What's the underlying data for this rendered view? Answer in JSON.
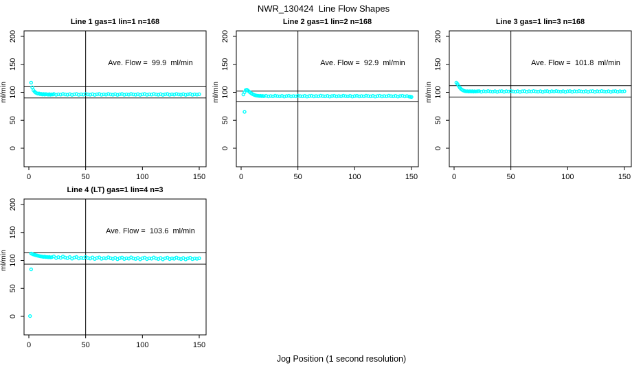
{
  "figure": {
    "title": "NWR_130424  Line Flow Shapes",
    "xlabel": "Jog Position (1 second resolution)",
    "ylabel": "ml/min",
    "background_color": "#FFFFFF",
    "axis_color": "#000000",
    "point_color": "#00FFFF"
  },
  "chart_data": [
    {
      "type": "scatter",
      "title": "Line 1 gas=1 lin=1 n=168",
      "annotation": "Ave. Flow =  99.9  ml/min",
      "ave_flow_ml_min": 99.9,
      "n": 168,
      "xlim": [
        0,
        150
      ],
      "ylim": [
        0,
        200
      ],
      "xticks": [
        0,
        50,
        100,
        150
      ],
      "yticks": [
        0,
        50,
        100,
        150,
        200
      ],
      "vline_x": 50,
      "ref_lines_y": [
        109.9,
        89.9
      ],
      "points": [
        [
          2,
          117.3
        ],
        [
          3,
          108.8
        ],
        [
          4,
          103.8
        ],
        [
          5,
          101.2
        ],
        [
          6,
          99.4
        ],
        [
          7,
          98.3
        ],
        [
          8,
          97.5
        ],
        [
          9,
          97.9
        ],
        [
          10,
          96.7
        ],
        [
          11,
          97.2
        ],
        [
          12,
          96.1
        ],
        [
          13,
          97.0
        ],
        [
          14,
          95.9
        ],
        [
          15,
          96.8
        ],
        [
          16,
          96.3
        ],
        [
          17,
          95.8
        ],
        [
          18,
          96.7
        ],
        [
          19,
          95.6
        ],
        [
          20,
          96.5
        ],
        [
          21,
          96.1
        ],
        [
          22,
          96.9
        ],
        [
          24,
          95.6
        ],
        [
          26,
          96.5
        ],
        [
          28,
          95.9
        ],
        [
          30,
          97.1
        ],
        [
          32,
          96.2
        ],
        [
          34,
          95.7
        ],
        [
          36,
          96.7
        ],
        [
          38,
          95.4
        ],
        [
          40,
          96.4
        ],
        [
          42,
          96.9
        ],
        [
          44,
          95.6
        ],
        [
          46,
          96.5
        ],
        [
          48,
          95.9
        ],
        [
          50,
          97.1
        ],
        [
          52,
          96.2
        ],
        [
          54,
          95.7
        ],
        [
          56,
          96.7
        ],
        [
          58,
          95.4
        ],
        [
          60,
          96.4
        ],
        [
          62,
          96.9
        ],
        [
          64,
          95.6
        ],
        [
          66,
          96.5
        ],
        [
          68,
          95.9
        ],
        [
          70,
          97.1
        ],
        [
          72,
          96.2
        ],
        [
          74,
          95.7
        ],
        [
          76,
          96.7
        ],
        [
          78,
          95.4
        ],
        [
          80,
          96.4
        ],
        [
          82,
          96.9
        ],
        [
          84,
          95.6
        ],
        [
          86,
          96.5
        ],
        [
          88,
          95.9
        ],
        [
          90,
          97.1
        ],
        [
          92,
          96.2
        ],
        [
          94,
          95.7
        ],
        [
          96,
          96.7
        ],
        [
          98,
          95.4
        ],
        [
          100,
          96.4
        ],
        [
          102,
          96.9
        ],
        [
          104,
          95.6
        ],
        [
          106,
          96.5
        ],
        [
          108,
          95.9
        ],
        [
          110,
          97.1
        ],
        [
          112,
          96.2
        ],
        [
          114,
          95.7
        ],
        [
          116,
          96.7
        ],
        [
          118,
          95.4
        ],
        [
          120,
          96.4
        ],
        [
          122,
          96.9
        ],
        [
          124,
          95.6
        ],
        [
          126,
          96.5
        ],
        [
          128,
          95.9
        ],
        [
          130,
          97.1
        ],
        [
          132,
          96.2
        ],
        [
          134,
          95.7
        ],
        [
          136,
          96.7
        ],
        [
          138,
          95.4
        ],
        [
          140,
          96.4
        ],
        [
          142,
          96.9
        ],
        [
          144,
          95.6
        ],
        [
          146,
          96.5
        ],
        [
          148,
          95.9
        ],
        [
          150,
          96.6
        ]
      ]
    },
    {
      "type": "scatter",
      "title": "Line 2 gas=1 lin=2 n=168",
      "annotation": "Ave. Flow =  92.9  ml/min",
      "ave_flow_ml_min": 92.9,
      "n": 168,
      "xlim": [
        0,
        150
      ],
      "ylim": [
        0,
        200
      ],
      "xticks": [
        0,
        50,
        100,
        150
      ],
      "yticks": [
        0,
        50,
        100,
        150,
        200
      ],
      "vline_x": 50,
      "ref_lines_y": [
        102.2,
        83.6
      ],
      "points": [
        [
          2,
          96.2
        ],
        [
          3,
          65.0
        ],
        [
          3,
          100.3
        ],
        [
          4,
          103.9
        ],
        [
          5,
          104.6
        ],
        [
          6,
          103.2
        ],
        [
          7,
          101.4
        ],
        [
          8,
          99.6
        ],
        [
          9,
          98.1
        ],
        [
          10,
          96.8
        ],
        [
          11,
          95.8
        ],
        [
          12,
          95.0
        ],
        [
          13,
          94.4
        ],
        [
          14,
          94.0
        ],
        [
          15,
          93.7
        ],
        [
          16,
          93.4
        ],
        [
          17,
          93.8
        ],
        [
          18,
          93.1
        ],
        [
          19,
          93.5
        ],
        [
          20,
          93.0
        ],
        [
          22,
          93.7
        ],
        [
          24,
          92.6
        ],
        [
          26,
          93.4
        ],
        [
          28,
          92.8
        ],
        [
          30,
          93.9
        ],
        [
          32,
          93.1
        ],
        [
          34,
          92.7
        ],
        [
          36,
          93.6
        ],
        [
          38,
          92.4
        ],
        [
          40,
          93.3
        ],
        [
          42,
          93.7
        ],
        [
          44,
          92.6
        ],
        [
          46,
          93.4
        ],
        [
          48,
          92.8
        ],
        [
          50,
          93.9
        ],
        [
          52,
          93.1
        ],
        [
          54,
          92.7
        ],
        [
          56,
          93.6
        ],
        [
          58,
          92.4
        ],
        [
          60,
          93.3
        ],
        [
          62,
          93.7
        ],
        [
          64,
          92.6
        ],
        [
          66,
          93.4
        ],
        [
          68,
          92.8
        ],
        [
          70,
          93.9
        ],
        [
          72,
          93.1
        ],
        [
          74,
          92.7
        ],
        [
          76,
          93.6
        ],
        [
          78,
          92.4
        ],
        [
          80,
          93.3
        ],
        [
          82,
          93.7
        ],
        [
          84,
          92.6
        ],
        [
          86,
          93.4
        ],
        [
          88,
          92.8
        ],
        [
          90,
          93.9
        ],
        [
          92,
          93.1
        ],
        [
          94,
          92.7
        ],
        [
          96,
          93.6
        ],
        [
          98,
          92.4
        ],
        [
          100,
          93.3
        ],
        [
          102,
          93.7
        ],
        [
          104,
          92.6
        ],
        [
          106,
          93.4
        ],
        [
          108,
          92.8
        ],
        [
          110,
          93.9
        ],
        [
          112,
          93.1
        ],
        [
          114,
          92.7
        ],
        [
          116,
          93.6
        ],
        [
          118,
          92.4
        ],
        [
          120,
          93.3
        ],
        [
          122,
          93.7
        ],
        [
          124,
          92.6
        ],
        [
          126,
          93.4
        ],
        [
          128,
          92.8
        ],
        [
          130,
          93.9
        ],
        [
          132,
          93.1
        ],
        [
          134,
          92.7
        ],
        [
          136,
          93.6
        ],
        [
          138,
          92.4
        ],
        [
          140,
          93.3
        ],
        [
          142,
          93.7
        ],
        [
          144,
          92.6
        ],
        [
          146,
          93.4
        ],
        [
          148,
          92.3
        ],
        [
          149,
          92.0
        ],
        [
          150,
          91.6
        ]
      ]
    },
    {
      "type": "scatter",
      "title": "Line 3 gas=1 lin=3 n=168",
      "annotation": "Ave. Flow =  101.8  ml/min",
      "ave_flow_ml_min": 101.8,
      "n": 168,
      "xlim": [
        0,
        150
      ],
      "ylim": [
        0,
        200
      ],
      "xticks": [
        0,
        50,
        100,
        150
      ],
      "yticks": [
        0,
        50,
        100,
        150,
        200
      ],
      "vline_x": 50,
      "ref_lines_y": [
        112.0,
        91.6
      ],
      "points": [
        [
          2,
          117.2
        ],
        [
          3,
          114.9
        ],
        [
          4,
          111.4
        ],
        [
          5,
          108.4
        ],
        [
          6,
          106.1
        ],
        [
          7,
          104.5
        ],
        [
          8,
          103.3
        ],
        [
          9,
          102.5
        ],
        [
          10,
          102.0
        ],
        [
          11,
          101.7
        ],
        [
          12,
          101.9
        ],
        [
          13,
          101.4
        ],
        [
          14,
          101.8
        ],
        [
          15,
          101.3
        ],
        [
          16,
          101.9
        ],
        [
          17,
          101.2
        ],
        [
          18,
          101.7
        ],
        [
          19,
          101.4
        ],
        [
          20,
          101.6
        ],
        [
          21,
          101.8
        ],
        [
          22,
          102.1
        ],
        [
          24,
          101.0
        ],
        [
          26,
          101.8
        ],
        [
          28,
          101.3
        ],
        [
          30,
          102.2
        ],
        [
          32,
          101.5
        ],
        [
          34,
          101.1
        ],
        [
          36,
          101.9
        ],
        [
          38,
          100.9
        ],
        [
          40,
          101.7
        ],
        [
          42,
          102.1
        ],
        [
          44,
          101.0
        ],
        [
          46,
          101.8
        ],
        [
          48,
          101.3
        ],
        [
          50,
          102.2
        ],
        [
          52,
          101.5
        ],
        [
          54,
          101.1
        ],
        [
          56,
          101.9
        ],
        [
          58,
          100.9
        ],
        [
          60,
          101.7
        ],
        [
          62,
          102.1
        ],
        [
          64,
          101.0
        ],
        [
          66,
          101.8
        ],
        [
          68,
          101.3
        ],
        [
          70,
          102.2
        ],
        [
          72,
          101.5
        ],
        [
          74,
          101.1
        ],
        [
          76,
          101.9
        ],
        [
          78,
          100.9
        ],
        [
          80,
          101.7
        ],
        [
          82,
          102.1
        ],
        [
          84,
          101.0
        ],
        [
          86,
          101.8
        ],
        [
          88,
          101.3
        ],
        [
          90,
          102.2
        ],
        [
          92,
          101.5
        ],
        [
          94,
          101.1
        ],
        [
          96,
          101.9
        ],
        [
          98,
          100.9
        ],
        [
          100,
          101.7
        ],
        [
          102,
          102.1
        ],
        [
          104,
          101.0
        ],
        [
          106,
          101.8
        ],
        [
          108,
          101.3
        ],
        [
          110,
          102.2
        ],
        [
          112,
          101.5
        ],
        [
          114,
          101.1
        ],
        [
          116,
          101.9
        ],
        [
          118,
          100.9
        ],
        [
          120,
          101.7
        ],
        [
          122,
          102.1
        ],
        [
          124,
          101.0
        ],
        [
          126,
          101.8
        ],
        [
          128,
          101.3
        ],
        [
          130,
          102.2
        ],
        [
          132,
          101.5
        ],
        [
          134,
          101.1
        ],
        [
          136,
          101.9
        ],
        [
          138,
          100.9
        ],
        [
          140,
          101.7
        ],
        [
          142,
          102.1
        ],
        [
          144,
          101.0
        ],
        [
          146,
          101.8
        ],
        [
          148,
          101.3
        ],
        [
          150,
          101.9
        ]
      ]
    },
    {
      "type": "scatter",
      "title": "Line 4 (LT) gas=1 lin=4 n=3",
      "annotation": "Ave. Flow =  103.6  ml/min",
      "ave_flow_ml_min": 103.6,
      "n": 3,
      "xlim": [
        0,
        150
      ],
      "ylim": [
        0,
        200
      ],
      "xticks": [
        0,
        50,
        100,
        150
      ],
      "yticks": [
        0,
        50,
        100,
        150,
        200
      ],
      "vline_x": 50,
      "ref_lines_y": [
        114.0,
        93.2
      ],
      "points": [
        [
          1,
          0.5
        ],
        [
          2,
          84.0
        ],
        [
          2,
          112.4
        ],
        [
          3,
          111.5
        ],
        [
          4,
          110.7
        ],
        [
          5,
          110.1
        ],
        [
          6,
          109.4
        ],
        [
          7,
          108.9
        ],
        [
          8,
          108.3
        ],
        [
          9,
          107.9
        ],
        [
          10,
          107.4
        ],
        [
          11,
          107.1
        ],
        [
          12,
          106.7
        ],
        [
          13,
          106.4
        ],
        [
          14,
          106.8
        ],
        [
          15,
          106.0
        ],
        [
          16,
          106.3
        ],
        [
          17,
          105.7
        ],
        [
          18,
          106.1
        ],
        [
          19,
          105.4
        ],
        [
          20,
          105.8
        ],
        [
          22,
          107.1
        ],
        [
          24,
          104.3
        ],
        [
          26,
          105.9
        ],
        [
          28,
          104.7
        ],
        [
          30,
          107.0
        ],
        [
          32,
          105.2
        ],
        [
          34,
          104.1
        ],
        [
          36,
          106.0
        ],
        [
          38,
          103.3
        ],
        [
          40,
          105.2
        ],
        [
          42,
          106.1
        ],
        [
          44,
          103.5
        ],
        [
          46,
          104.8
        ],
        [
          48,
          103.9
        ],
        [
          50,
          106.2
        ],
        [
          52,
          104.4
        ],
        [
          54,
          103.4
        ],
        [
          56,
          105.3
        ],
        [
          58,
          102.7
        ],
        [
          60,
          104.4
        ],
        [
          62,
          105.4
        ],
        [
          64,
          102.9
        ],
        [
          66,
          104.2
        ],
        [
          68,
          103.5
        ],
        [
          70,
          105.7
        ],
        [
          72,
          103.9
        ],
        [
          74,
          102.9
        ],
        [
          76,
          104.7
        ],
        [
          78,
          102.2
        ],
        [
          80,
          104.0
        ],
        [
          82,
          105.2
        ],
        [
          84,
          102.6
        ],
        [
          86,
          103.9
        ],
        [
          88,
          103.3
        ],
        [
          90,
          105.4
        ],
        [
          92,
          103.6
        ],
        [
          94,
          102.7
        ],
        [
          96,
          104.5
        ],
        [
          98,
          102.0
        ],
        [
          100,
          103.9
        ],
        [
          102,
          105.0
        ],
        [
          104,
          102.5
        ],
        [
          106,
          103.8
        ],
        [
          108,
          103.2
        ],
        [
          110,
          105.3
        ],
        [
          112,
          103.5
        ],
        [
          114,
          102.6
        ],
        [
          116,
          104.4
        ],
        [
          118,
          101.9
        ],
        [
          120,
          103.8
        ],
        [
          122,
          104.9
        ],
        [
          124,
          102.4
        ],
        [
          126,
          103.7
        ],
        [
          128,
          103.1
        ],
        [
          130,
          105.2
        ],
        [
          132,
          103.4
        ],
        [
          134,
          102.5
        ],
        [
          136,
          104.3
        ],
        [
          138,
          101.8
        ],
        [
          140,
          103.7
        ],
        [
          142,
          104.8
        ],
        [
          144,
          102.3
        ],
        [
          146,
          103.6
        ],
        [
          148,
          103.0
        ],
        [
          150,
          103.9
        ]
      ]
    }
  ]
}
